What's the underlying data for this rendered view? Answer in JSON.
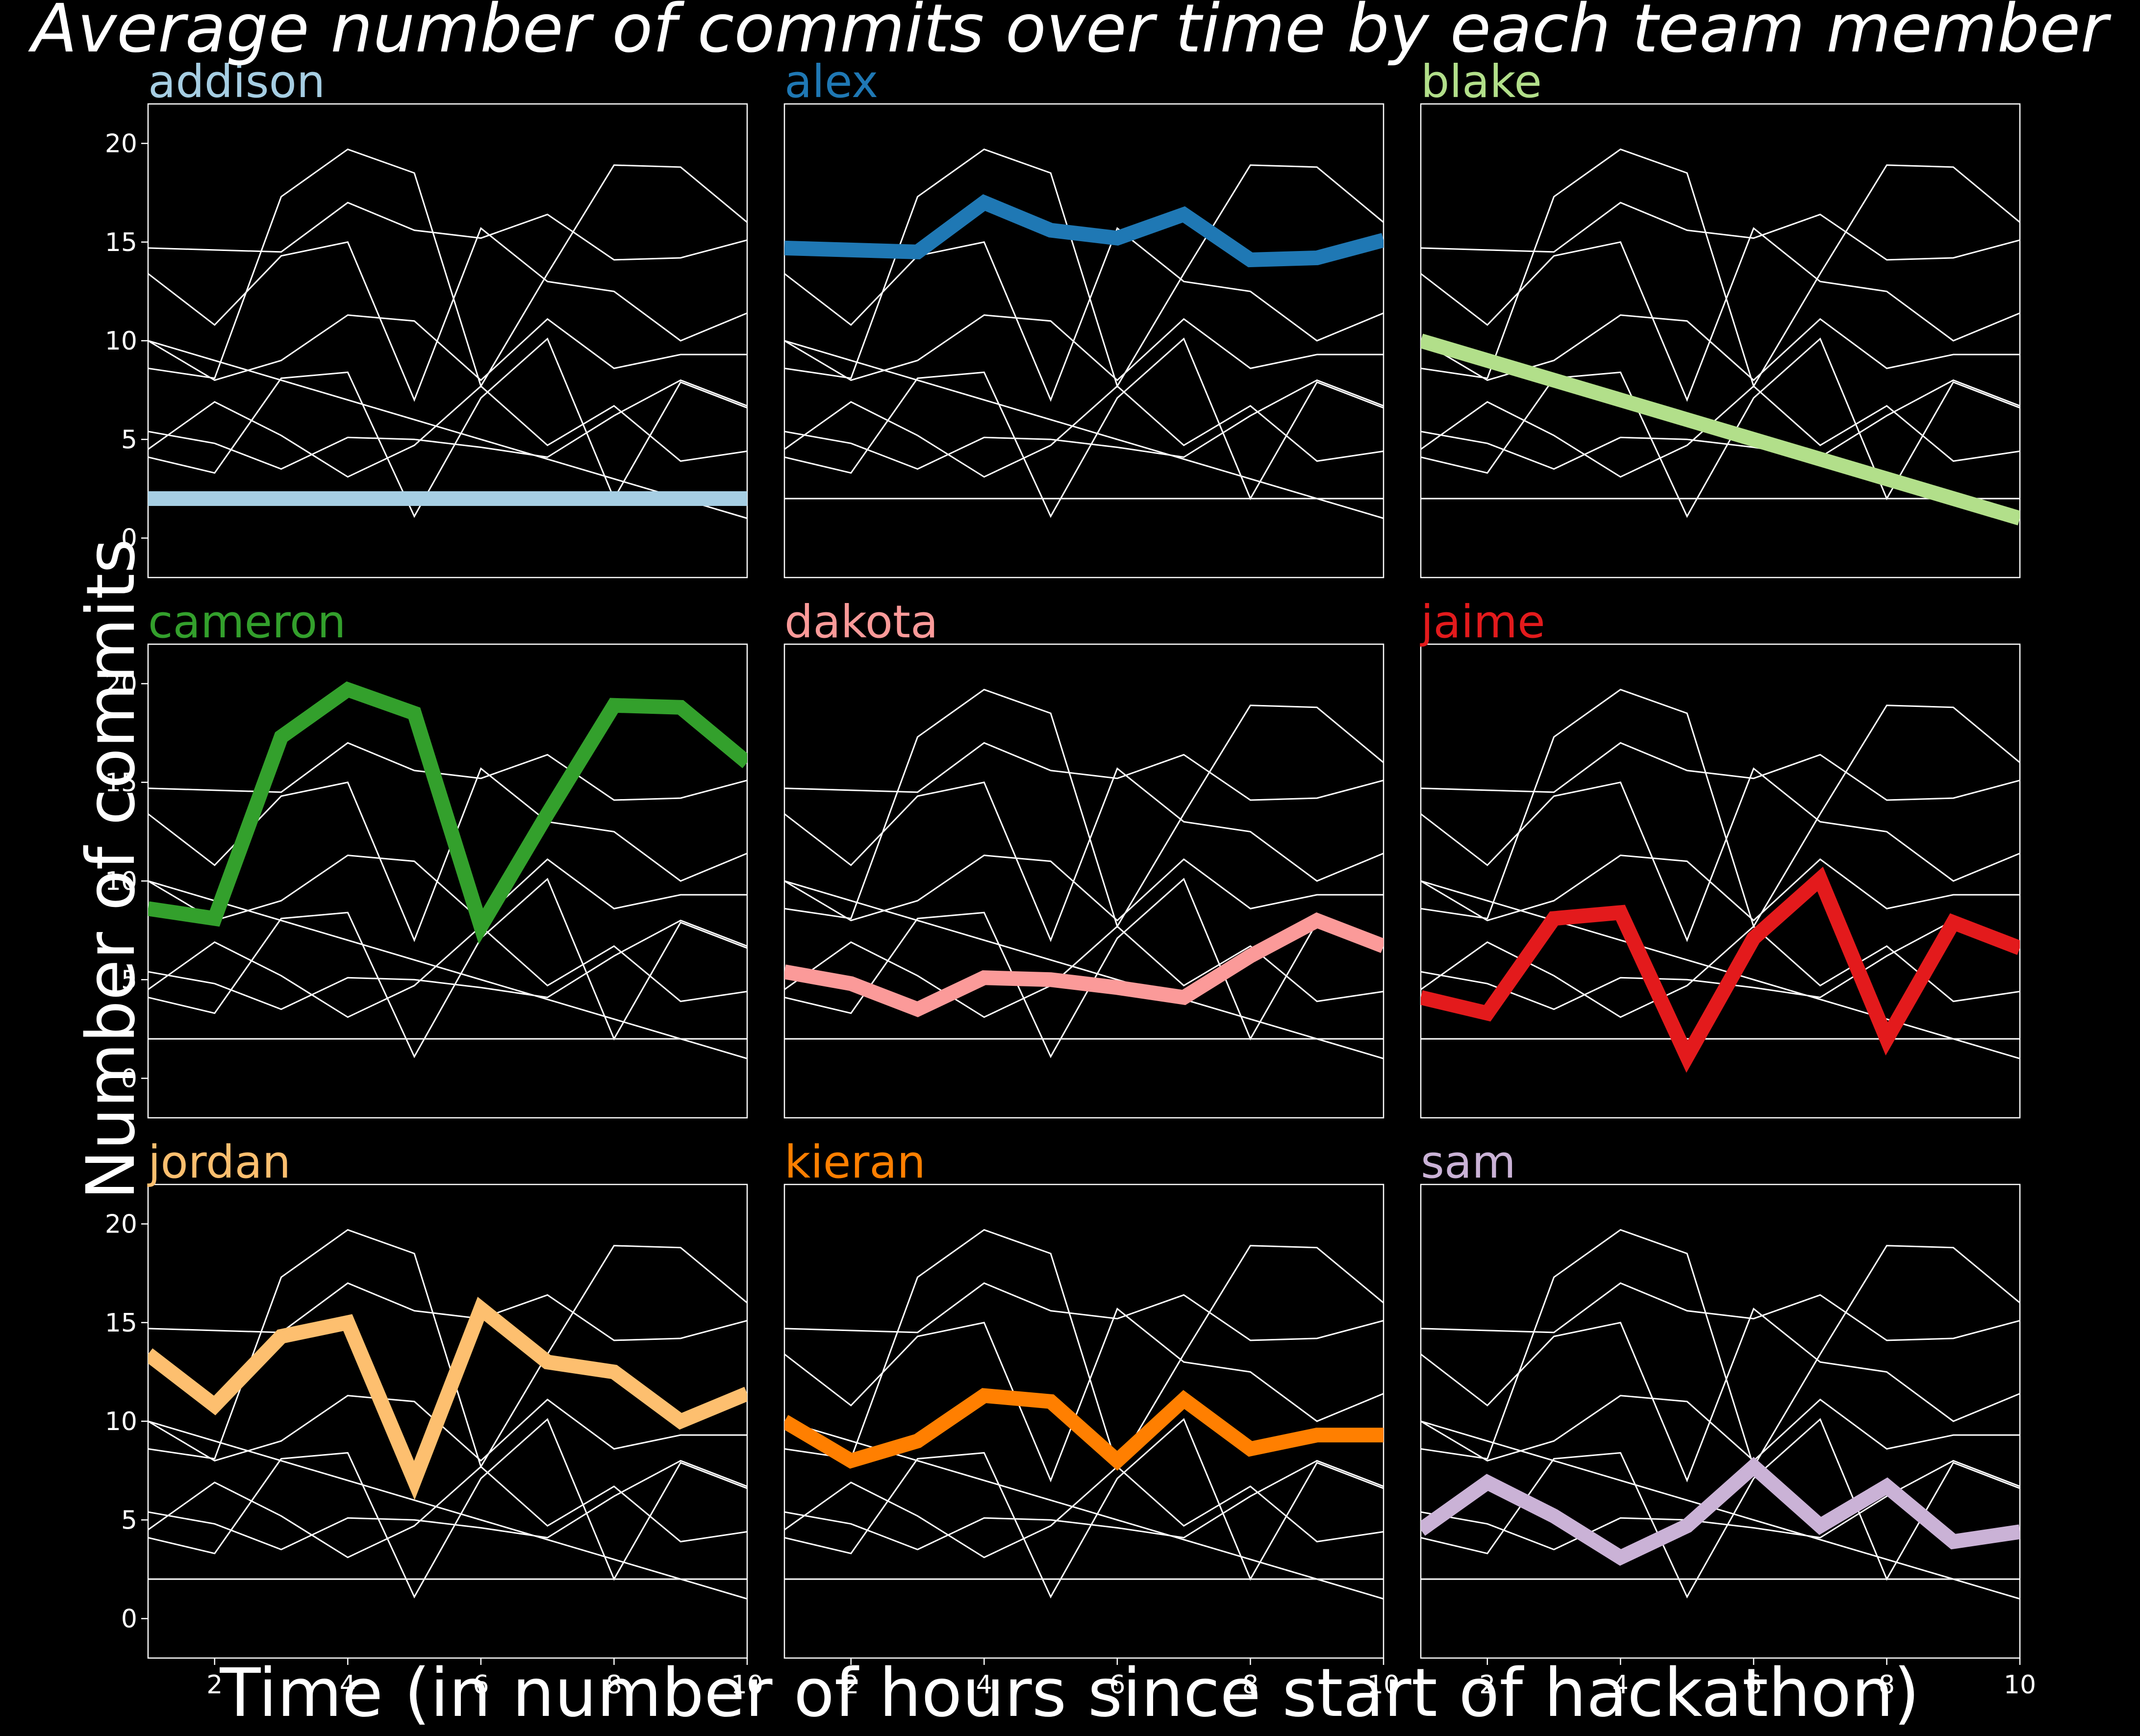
{
  "chart_data": {
    "type": "line",
    "title": "Average number of commits over time by each team member",
    "xlabel": "Time (in number of hours since start of hackathon)",
    "ylabel": "Number of commits",
    "x": [
      1,
      2,
      3,
      4,
      5,
      6,
      7,
      8,
      9,
      10
    ],
    "xlim": [
      1,
      10
    ],
    "ylim": [
      -2,
      22
    ],
    "yticks": [
      0,
      5,
      10,
      15,
      20
    ],
    "xticks": [
      2,
      4,
      6,
      8,
      10
    ],
    "grid": false,
    "layout": "3x3 small multiples, shared axes",
    "background_color": "#000000",
    "context_line_color": "#ffffff",
    "series": [
      {
        "name": "addison",
        "color": "#a6cee3",
        "values": [
          2,
          2,
          2,
          2,
          2,
          2,
          2,
          2,
          2,
          2
        ]
      },
      {
        "name": "alex",
        "color": "#1f78b4",
        "values": [
          14.7,
          14.6,
          14.5,
          17.0,
          15.6,
          15.2,
          16.4,
          14.1,
          14.2,
          15.1
        ]
      },
      {
        "name": "blake",
        "color": "#b2df8a",
        "values": [
          10,
          9.0,
          8.0,
          7.0,
          6.0,
          5.0,
          4.0,
          3.0,
          2.0,
          1.0
        ]
      },
      {
        "name": "cameron",
        "color": "#33a02c",
        "values": [
          8.6,
          8.1,
          17.3,
          19.7,
          18.5,
          7.7,
          13.4,
          18.9,
          18.8,
          16.0
        ]
      },
      {
        "name": "dakota",
        "color": "#fb9a99",
        "values": [
          5.4,
          4.8,
          3.5,
          5.1,
          5.0,
          4.6,
          4.1,
          6.2,
          8.0,
          6.7
        ]
      },
      {
        "name": "jaime",
        "color": "#e31a1c",
        "values": [
          4.1,
          3.3,
          8.1,
          8.4,
          1.1,
          7.1,
          10.1,
          2.0,
          7.9,
          6.6
        ]
      },
      {
        "name": "jordan",
        "color": "#fdbf6f",
        "values": [
          13.4,
          10.8,
          14.3,
          15.0,
          7.0,
          15.7,
          13.0,
          12.5,
          10.0,
          11.4
        ]
      },
      {
        "name": "kieran",
        "color": "#ff7f00",
        "values": [
          10.0,
          8.0,
          9.0,
          11.3,
          11.0,
          8.0,
          11.1,
          8.6,
          9.3,
          9.3
        ]
      },
      {
        "name": "sam",
        "color": "#cab2d6",
        "values": [
          4.5,
          6.9,
          5.2,
          3.1,
          4.7,
          7.7,
          4.7,
          6.7,
          3.9,
          4.4
        ]
      }
    ]
  }
}
